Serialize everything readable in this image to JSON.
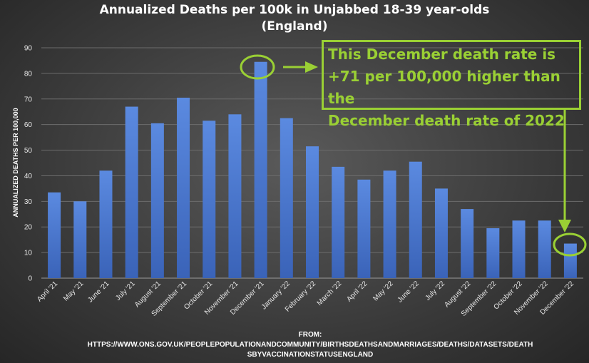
{
  "chart_data": {
    "type": "bar",
    "title_line1": "Annualized Deaths per 100k in Unjabbed 18-39 year-olds",
    "title_line2": "(England)",
    "ylabel": "ANNUALIZED DEATHS PER 100,000",
    "xlabel": "",
    "ylim": [
      0,
      90
    ],
    "yticks": [
      0,
      10,
      20,
      30,
      40,
      50,
      60,
      70,
      80,
      90
    ],
    "grid": true,
    "categories": [
      "April '21",
      "May '21",
      "June '21",
      "July '21",
      "August '21",
      "September '21",
      "October '21",
      "November '21",
      "December '21",
      "January '22",
      "February '22",
      "March '22",
      "April '22",
      "May '22",
      "June '22",
      "July '22",
      "August '22",
      "September '22",
      "October '22",
      "November '22",
      "December '22"
    ],
    "values": [
      33.5,
      30,
      42,
      67,
      60.5,
      70.5,
      61.5,
      64,
      84.5,
      62.5,
      51.5,
      43.5,
      38.5,
      42,
      45.5,
      35,
      27,
      19.5,
      22.5,
      22.5,
      13.5
    ],
    "bar_color": "#4a78cf",
    "annotation": {
      "lines": [
        "This December death rate is",
        "+71 per 100,000 higher than the",
        "December death rate of 2022"
      ],
      "color": "#9ad034",
      "highlight_categories": [
        "December '21",
        "December '22"
      ]
    }
  },
  "source": {
    "line1": "FROM:",
    "line2": "HTTPS://WWW.ONS.GOV.UK/PEOPLEPOPULATIONANDCOMMUNITY/BIRTHSDEATHSANDMARRIAGES/DEATHS/DATASETS/DEATH",
    "line3": "SBYVACCINATIONSTATUSENGLAND"
  }
}
